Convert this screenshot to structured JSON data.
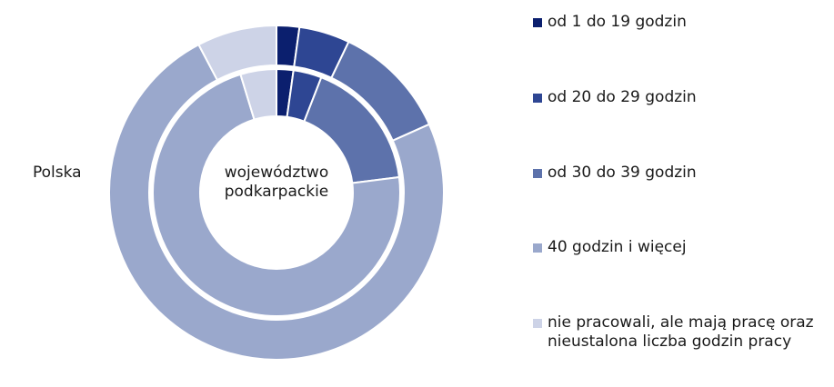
{
  "chart_data": {
    "type": "donut",
    "categories": [
      "od 1 do 19 godzin",
      "od 20 do 29 godzin",
      "od 30 do 39 godzin",
      "40 godzin i więcej",
      "nie pracowali, ale mają pracę oraz nieustalona liczba godzin pracy"
    ],
    "colors": [
      "#0b1f6e",
      "#2e4693",
      "#5d72ab",
      "#9aa8cc",
      "#cdd3e7"
    ],
    "series": [
      {
        "name": "Polska",
        "values": [
          2.2,
          4.9,
          11.2,
          74.0,
          7.7
        ]
      },
      {
        "name": "województwo podkarpackie",
        "values": [
          2.2,
          3.7,
          17.1,
          72.3,
          4.7
        ]
      }
    ],
    "legend": "right"
  }
}
